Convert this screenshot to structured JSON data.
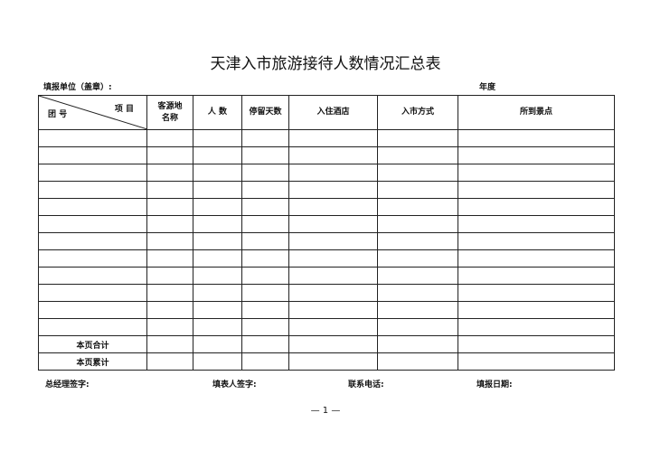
{
  "title": "天津入市旅游接待人数情况汇总表",
  "reporting_unit_label": "填报单位（盖章）:",
  "year_label": "年度",
  "table": {
    "corner_top": "项 目",
    "corner_bottom": "团 号",
    "columns": [
      "客源地名称",
      "人 数",
      "停留天数",
      "入住酒店",
      "入市方式",
      "所到景点"
    ],
    "empty_rows": 12,
    "summary_rows": [
      "本页合计",
      "本页累计"
    ]
  },
  "footer": {
    "gm_signature": "总经理签字:",
    "filler_signature": "填表人签字:",
    "phone": "联系电话:",
    "report_date": "填报日期:"
  },
  "page_number": "— 1 —"
}
